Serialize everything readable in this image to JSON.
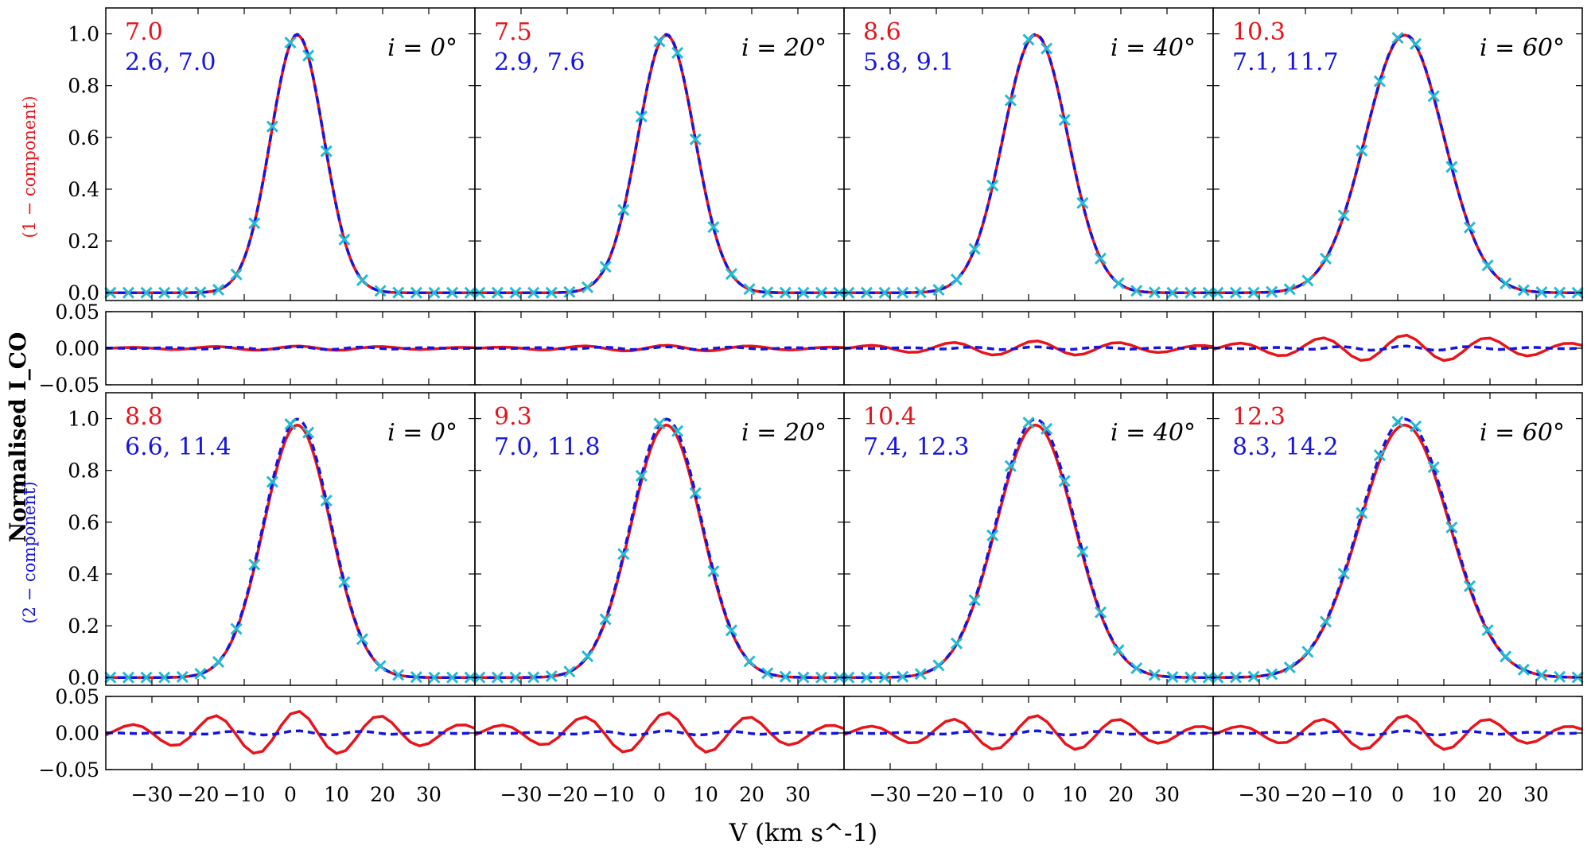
{
  "chart_data": {
    "type": "line",
    "ylabel": "Normalised I_CO",
    "xlabel": "V (km s^-1)",
    "xlim": [
      -40,
      40
    ],
    "xticks": [
      "−30",
      "−20",
      "−10",
      "0",
      "10",
      "20",
      "30"
    ],
    "main_yticks": [
      "0.0",
      "0.2",
      "0.4",
      "0.6",
      "0.8",
      "1.0"
    ],
    "resid_yticks": [
      "−0.05",
      "0.00",
      "0.05"
    ],
    "colors": {
      "data": "#22bbd2",
      "one_component": "#e8141b",
      "two_component": "#1515e0"
    },
    "rows": [
      {
        "label": "(1 − component)",
        "label_color": "#e8141b",
        "panels": [
          {
            "inclination": "i = 0°",
            "inclination_deg": 0,
            "red_text": "7.0",
            "blue_text": "2.6,  7.0",
            "fwhm_data": 13.5,
            "red_sigma": 7.0,
            "blue_sigma": [
              2.6,
              7.0
            ],
            "resid_amp": [
              0.002,
              0.003
            ]
          },
          {
            "inclination": "i = 20°",
            "inclination_deg": 20,
            "red_text": "7.5",
            "blue_text": "2.9,  7.6",
            "fwhm_data": 14.5,
            "red_sigma": 7.5,
            "blue_sigma": [
              2.9,
              7.6
            ],
            "resid_amp": [
              0.002,
              0.004
            ]
          },
          {
            "inclination": "i = 40°",
            "inclination_deg": 40,
            "red_text": "8.6",
            "blue_text": "5.8,  9.1",
            "fwhm_data": 16.5,
            "red_sigma": 8.6,
            "blue_sigma": [
              5.8,
              9.1
            ],
            "resid_amp": [
              0.002,
              0.01
            ]
          },
          {
            "inclination": "i = 60°",
            "inclination_deg": 60,
            "red_text": "10.3",
            "blue_text": "7.1, 11.7",
            "fwhm_data": 20.0,
            "red_sigma": 10.3,
            "blue_sigma": [
              7.1,
              11.7
            ],
            "resid_amp": [
              0.003,
              0.018
            ]
          }
        ]
      },
      {
        "label": "(2 − component)",
        "label_color": "#1515e0",
        "panels": [
          {
            "inclination": "i = 0°",
            "inclination_deg": 0,
            "red_text": "8.8",
            "blue_text": "6.6, 11.4",
            "fwhm_data": 17.0,
            "red_sigma": 8.8,
            "blue_sigma": [
              6.6,
              11.4
            ],
            "resid_amp": [
              0.003,
              0.03
            ]
          },
          {
            "inclination": "i = 20°",
            "inclination_deg": 20,
            "red_text": "9.3",
            "blue_text": "7.0, 11.8",
            "fwhm_data": 18.0,
            "red_sigma": 9.3,
            "blue_sigma": [
              7.0,
              11.8
            ],
            "resid_amp": [
              0.003,
              0.028
            ]
          },
          {
            "inclination": "i = 40°",
            "inclination_deg": 40,
            "red_text": "10.4",
            "blue_text": "7.4, 12.3",
            "fwhm_data": 20.0,
            "red_sigma": 10.4,
            "blue_sigma": [
              7.4,
              12.3
            ],
            "resid_amp": [
              0.003,
              0.024
            ]
          },
          {
            "inclination": "i = 60°",
            "inclination_deg": 60,
            "red_text": "12.3",
            "blue_text": "8.3, 14.2",
            "fwhm_data": 23.0,
            "red_sigma": 12.3,
            "blue_sigma": [
              8.3,
              14.2
            ],
            "resid_amp": [
              0.003,
              0.024
            ]
          }
        ]
      }
    ]
  }
}
